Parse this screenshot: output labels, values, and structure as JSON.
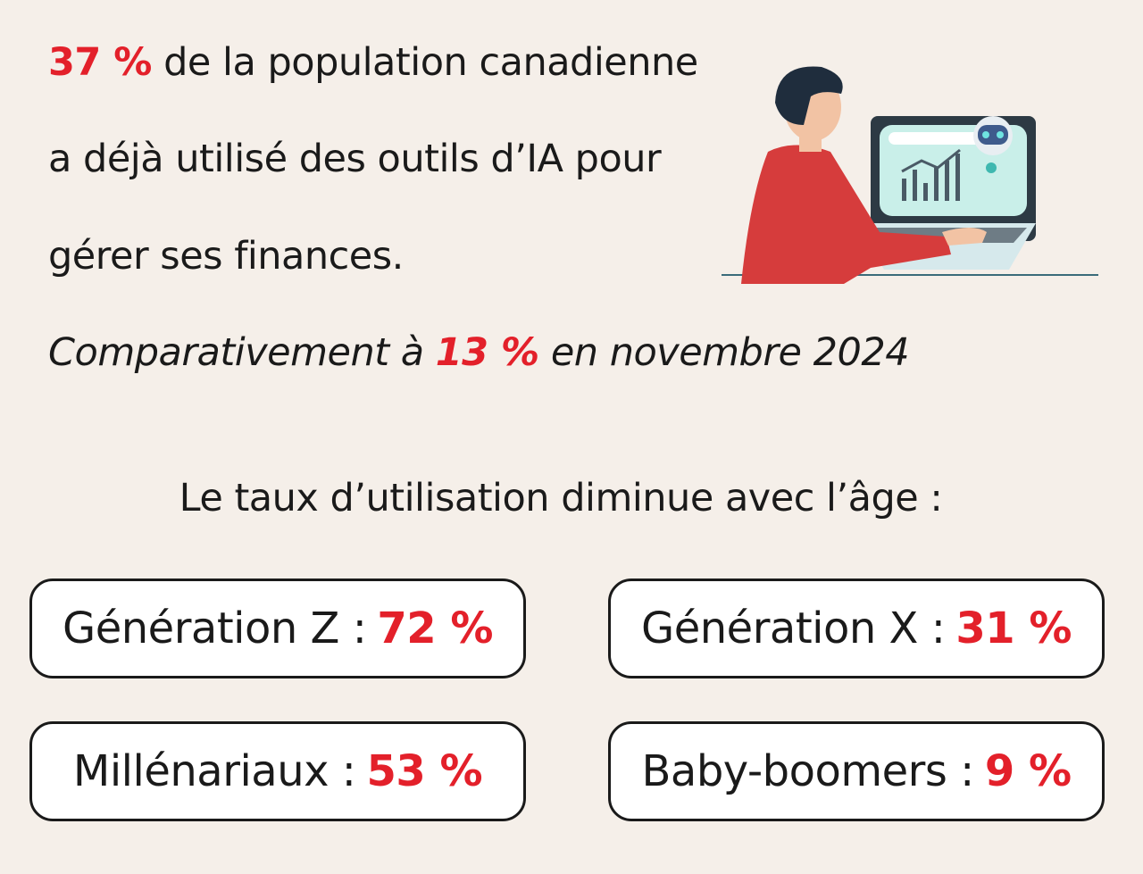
{
  "headline": {
    "stat": "37 %",
    "lines": [
      "de la population canadienne",
      "a déjà utilisé des outils d’IA pour",
      "gérer ses finances."
    ]
  },
  "comparison": {
    "before": "Comparativement à",
    "stat": "13 %",
    "after": "en novembre 2024"
  },
  "subheading": "Le taux d’utilisation diminue avec l’âge :",
  "groups": [
    {
      "label": "Génération Z :",
      "value": "72 %"
    },
    {
      "label": "Génération X :",
      "value": "31 %"
    },
    {
      "label": "Millénariaux :",
      "value": "53 %"
    },
    {
      "label": "Baby-boomers :",
      "value": "9 %"
    }
  ]
}
